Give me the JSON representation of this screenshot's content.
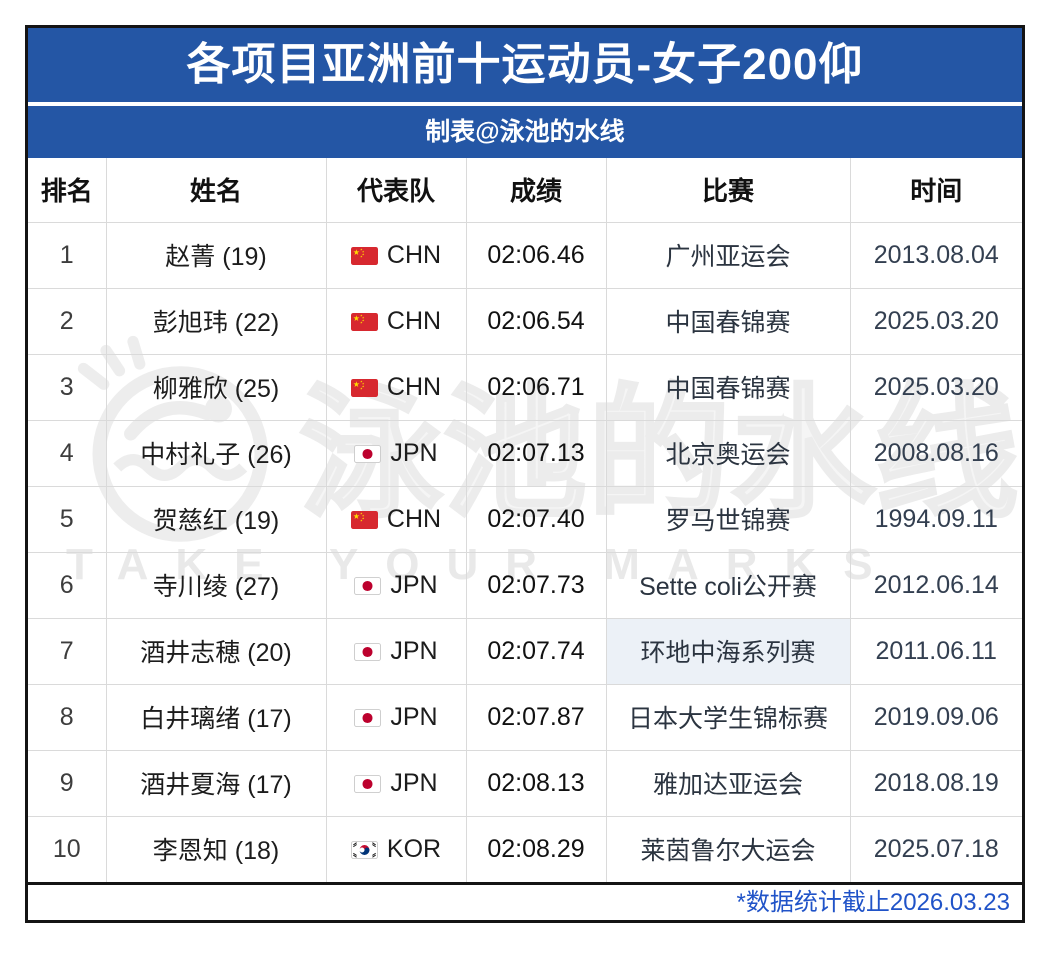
{
  "header": {
    "title": "各项目亚洲前十运动员-女子200仰",
    "subtitle": "制表@泳池的水线"
  },
  "chart_data": {
    "type": "table",
    "title": "各项目亚洲前十运动员-女子200仰",
    "columns": [
      "排名",
      "姓名",
      "代表队",
      "成绩",
      "比赛",
      "时间"
    ],
    "rows": [
      {
        "rank": "1",
        "name": "赵菁 (19)",
        "flag": "chn",
        "team": "CHN",
        "result": "02:06.46",
        "competition": "广州亚运会",
        "date": "2013.08.04",
        "highlighted": false
      },
      {
        "rank": "2",
        "name": "彭旭玮 (22)",
        "flag": "chn",
        "team": "CHN",
        "result": "02:06.54",
        "competition": "中国春锦赛",
        "date": "2025.03.20",
        "highlighted": false
      },
      {
        "rank": "3",
        "name": "柳雅欣 (25)",
        "flag": "chn",
        "team": "CHN",
        "result": "02:06.71",
        "competition": "中国春锦赛",
        "date": "2025.03.20",
        "highlighted": false
      },
      {
        "rank": "4",
        "name": "中村礼子 (26)",
        "flag": "jpn",
        "team": "JPN",
        "result": "02:07.13",
        "competition": "北京奥运会",
        "date": "2008.08.16",
        "highlighted": false
      },
      {
        "rank": "5",
        "name": "贺慈红 (19)",
        "flag": "chn",
        "team": "CHN",
        "result": "02:07.40",
        "competition": "罗马世锦赛",
        "date": "1994.09.11",
        "highlighted": false
      },
      {
        "rank": "6",
        "name": "寺川绫 (27)",
        "flag": "jpn",
        "team": "JPN",
        "result": "02:07.73",
        "competition": "Sette coli公开赛",
        "date": "2012.06.14",
        "highlighted": false
      },
      {
        "rank": "7",
        "name": "酒井志穂 (20)",
        "flag": "jpn",
        "team": "JPN",
        "result": "02:07.74",
        "competition": "环地中海系列赛",
        "date": "2011.06.11",
        "highlighted": true
      },
      {
        "rank": "8",
        "name": "白井璃绪 (17)",
        "flag": "jpn",
        "team": "JPN",
        "result": "02:07.87",
        "competition": "日本大学生锦标赛",
        "date": "2019.09.06",
        "highlighted": false
      },
      {
        "rank": "9",
        "name": "酒井夏海 (17)",
        "flag": "jpn",
        "team": "JPN",
        "result": "02:08.13",
        "competition": "雅加达亚运会",
        "date": "2018.08.19",
        "highlighted": false
      },
      {
        "rank": "10",
        "name": "李恩知 (18)",
        "flag": "kor",
        "team": "KOR",
        "result": "02:08.29",
        "competition": "莱茵鲁尔大运会",
        "date": "2025.07.18",
        "highlighted": false
      }
    ]
  },
  "footer": {
    "note": "*数据统计截止2026.03.23"
  },
  "watermark": {
    "cn": "泳池的水线",
    "en": "TAKE YOUR MARKS"
  },
  "colors": {
    "band_blue": "#2456A5",
    "border_black": "#141414",
    "grid_gray": "#dadada",
    "date_text": "#333F50",
    "note_blue": "#2053C8",
    "highlight_bg": "#ecf1f7"
  }
}
